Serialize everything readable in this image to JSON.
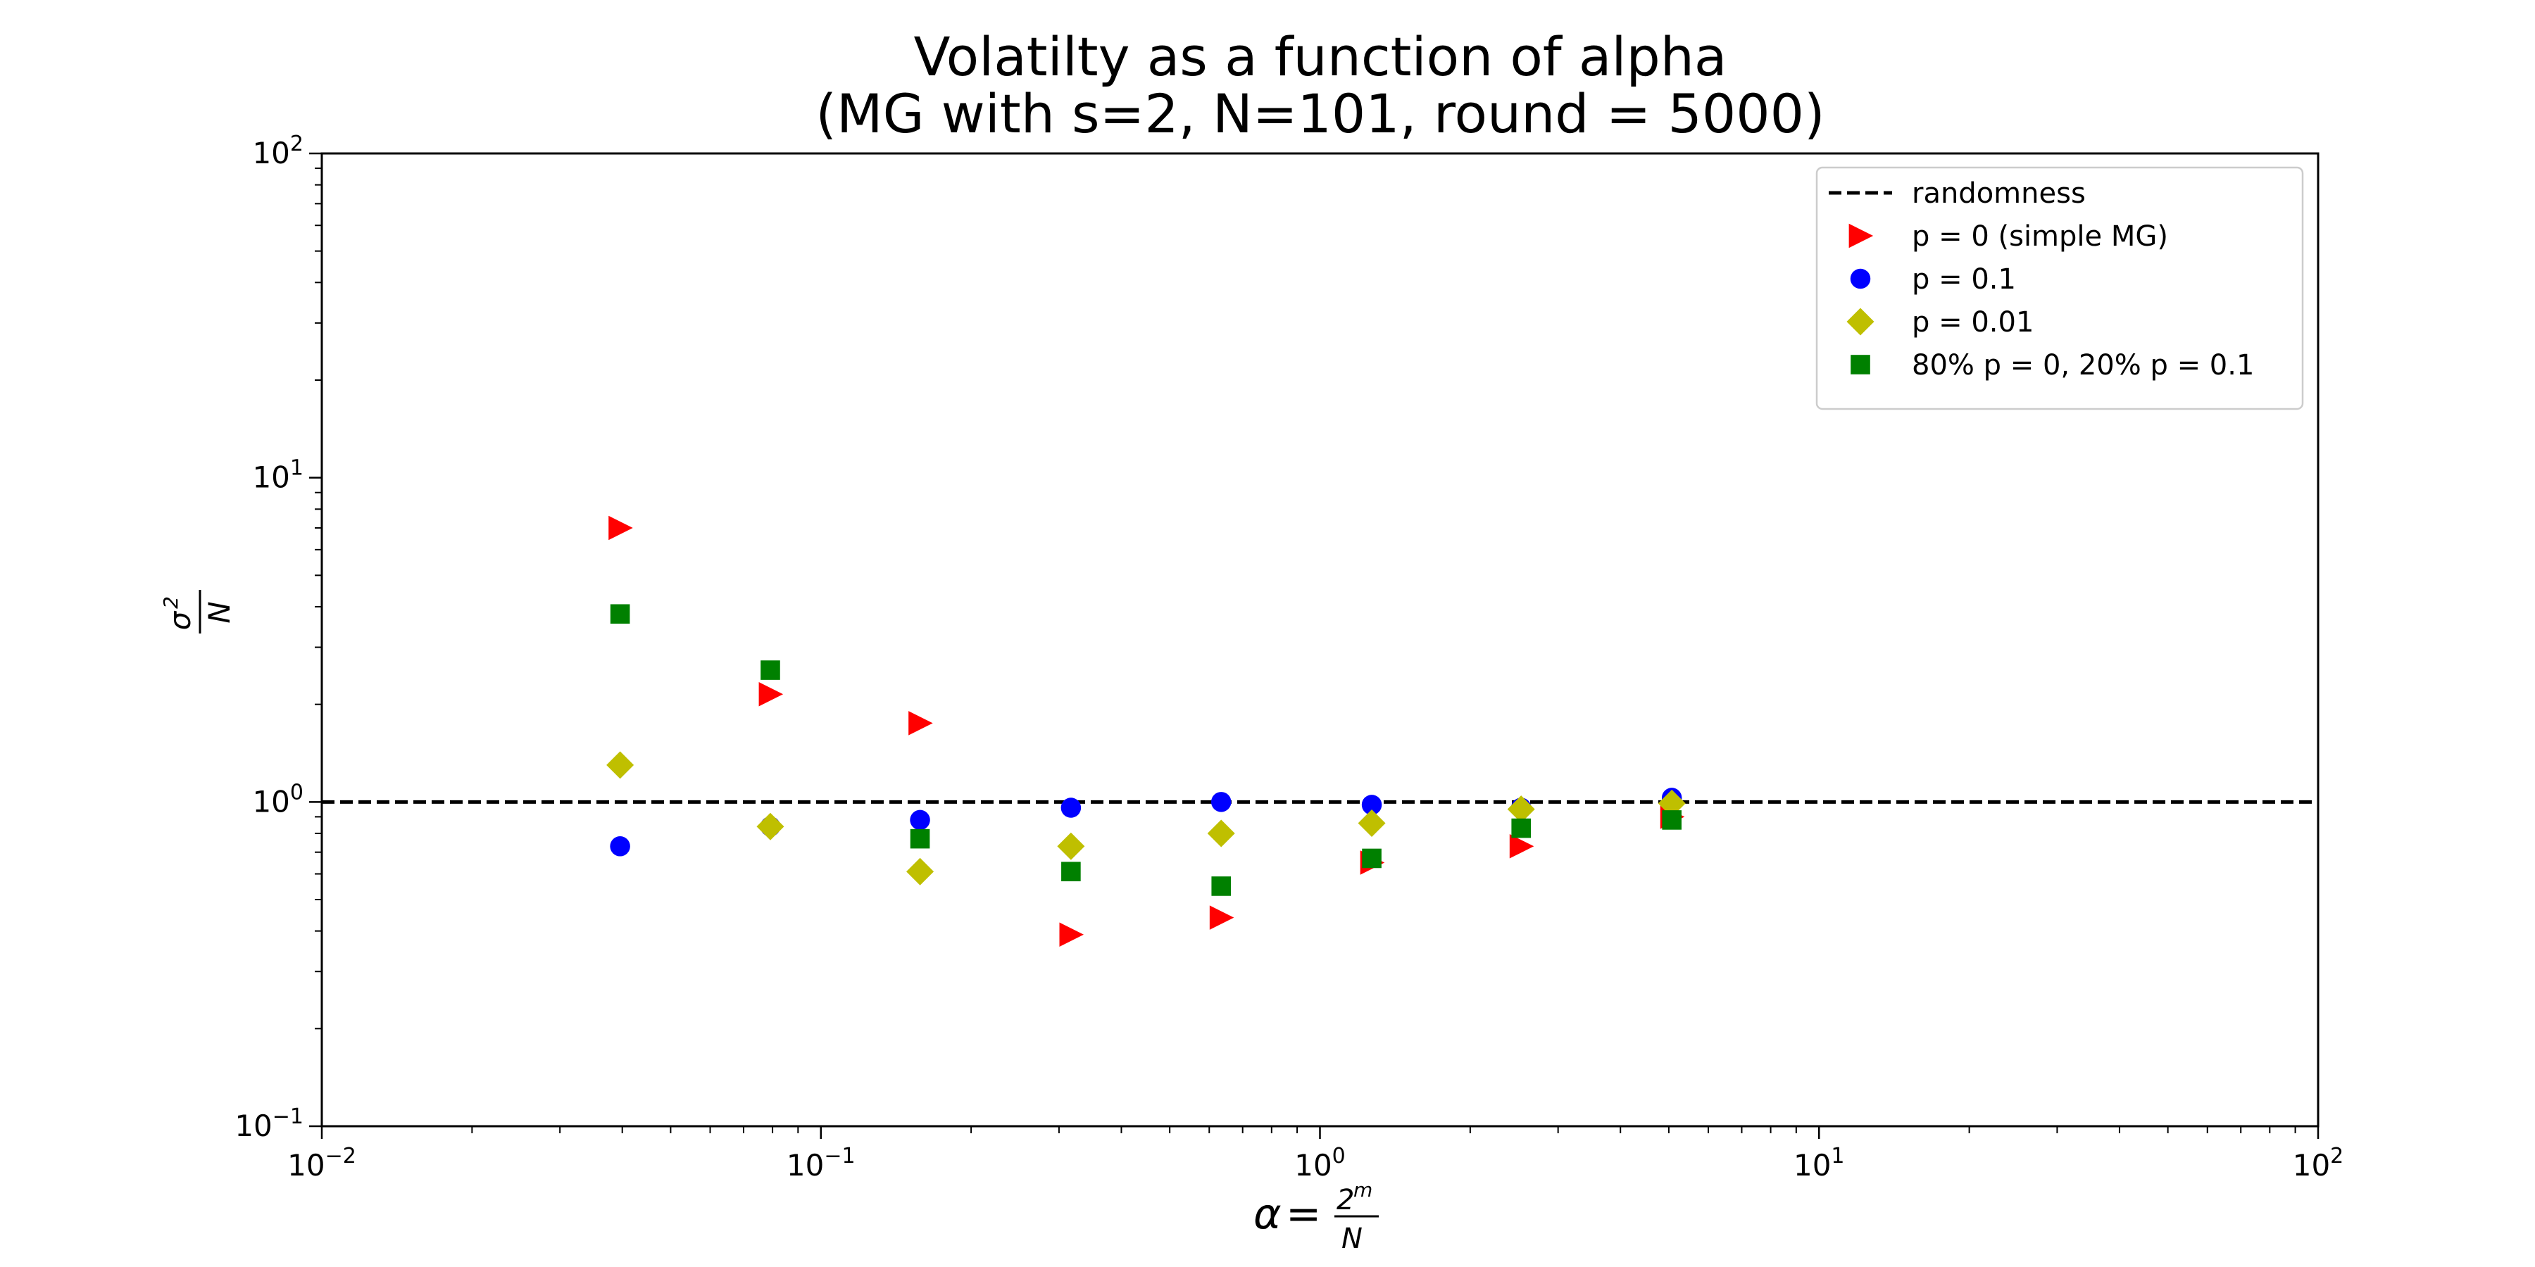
{
  "chart_data": {
    "type": "scatter",
    "title": "Volatilty as a function of alpha",
    "subtitle": "(MG with s=2, N=101, round = 5000)",
    "xlabel": {
      "var": "α",
      "eq": "=",
      "num": "2",
      "num_sup": "m",
      "den": "N"
    },
    "ylabel": {
      "num": "σ",
      "num_sup": "2",
      "den": "N"
    },
    "xscale": "log",
    "yscale": "log",
    "xlim": [
      0.01,
      100
    ],
    "ylim": [
      0.1,
      100
    ],
    "x_ticks": [
      {
        "value": 0.01,
        "base": "10",
        "exp": "−2"
      },
      {
        "value": 0.1,
        "base": "10",
        "exp": "−1"
      },
      {
        "value": 1,
        "base": "10",
        "exp": "0"
      },
      {
        "value": 10,
        "base": "10",
        "exp": "1"
      },
      {
        "value": 100,
        "base": "10",
        "exp": "2"
      }
    ],
    "y_ticks": [
      {
        "value": 0.1,
        "base": "10",
        "exp": "−1"
      },
      {
        "value": 1,
        "base": "10",
        "exp": "0"
      },
      {
        "value": 10,
        "base": "10",
        "exp": "1"
      },
      {
        "value": 100,
        "base": "10",
        "exp": "2"
      }
    ],
    "grid": false,
    "legend_position": "top-right",
    "reference_line": {
      "name": "randomness",
      "y": 1,
      "style": "dashed",
      "color": "#000000"
    },
    "series": [
      {
        "name": "p = 0 (simple MG)",
        "marker": "triangle-right",
        "color": "#ff0000",
        "points": [
          [
            0.0396,
            7.0
          ],
          [
            0.0792,
            2.15
          ],
          [
            0.158,
            1.75
          ],
          [
            0.317,
            0.39
          ],
          [
            0.634,
            0.44
          ],
          [
            1.27,
            0.65
          ],
          [
            2.53,
            0.73
          ],
          [
            5.07,
            0.9
          ]
        ]
      },
      {
        "name": "p = 0.1",
        "marker": "circle",
        "color": "#0000ff",
        "points": [
          [
            0.0396,
            0.73
          ],
          [
            0.0792,
            0.84
          ],
          [
            0.158,
            0.88
          ],
          [
            0.317,
            0.96
          ],
          [
            0.634,
            1.0
          ],
          [
            1.27,
            0.98
          ],
          [
            2.53,
            0.96
          ],
          [
            5.07,
            1.03
          ]
        ]
      },
      {
        "name": "p = 0.01",
        "marker": "diamond",
        "color": "#bfbf00",
        "points": [
          [
            0.0396,
            1.3
          ],
          [
            0.0792,
            0.84
          ],
          [
            0.158,
            0.61
          ],
          [
            0.317,
            0.73
          ],
          [
            0.634,
            0.8
          ],
          [
            1.27,
            0.86
          ],
          [
            2.53,
            0.95
          ],
          [
            5.07,
            0.99
          ]
        ]
      },
      {
        "name": "80% p = 0, 20% p = 0.1",
        "marker": "square",
        "color": "#008000",
        "points": [
          [
            0.0396,
            3.8
          ],
          [
            0.0792,
            2.55
          ],
          [
            0.158,
            0.77
          ],
          [
            0.317,
            0.61
          ],
          [
            0.634,
            0.55
          ],
          [
            1.27,
            0.67
          ],
          [
            2.53,
            0.83
          ],
          [
            5.07,
            0.88
          ]
        ]
      }
    ]
  }
}
